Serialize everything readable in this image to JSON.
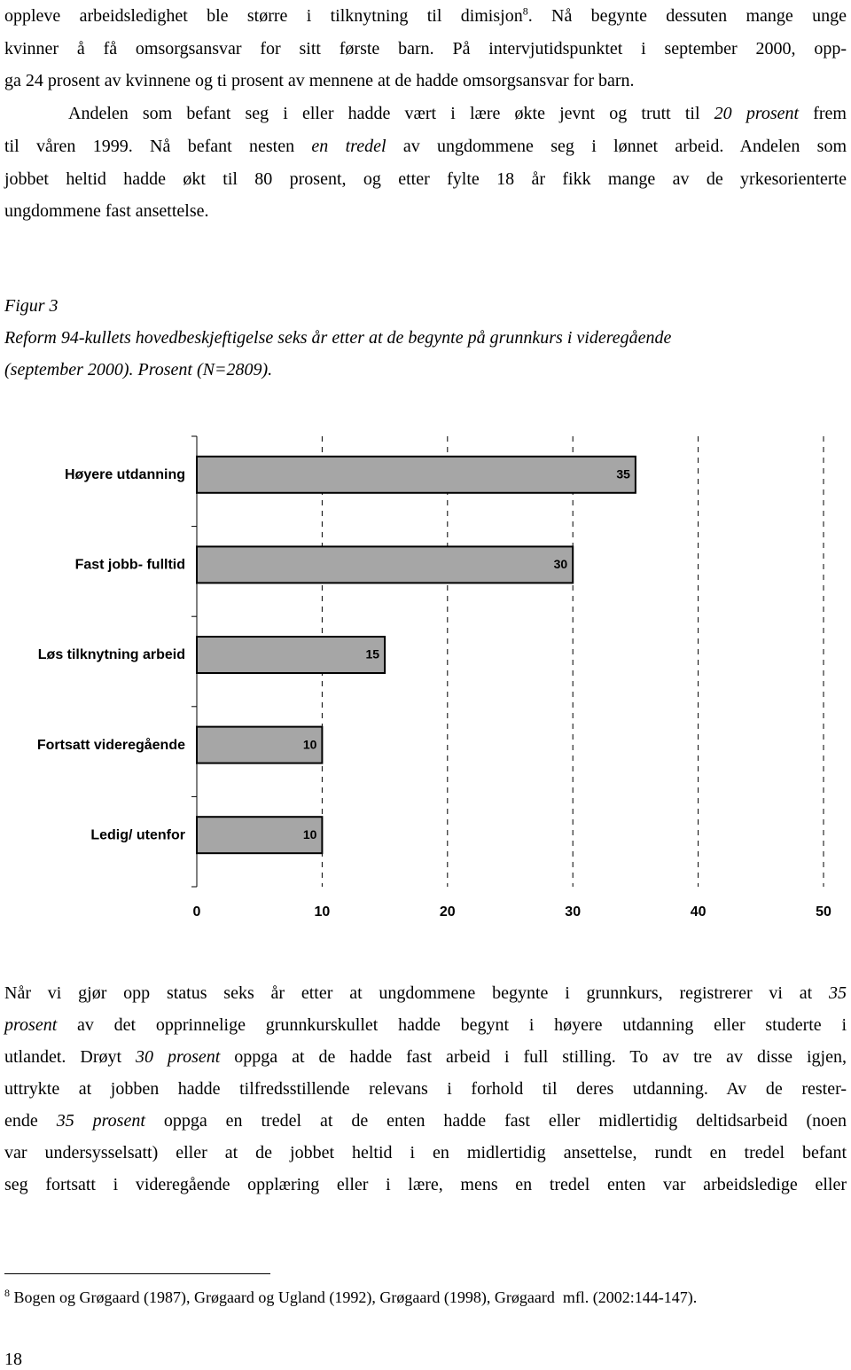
{
  "top_text": {
    "paragraphs": [
      [
        [
          "oppleve arbeidsledighet ble større i tilknytning til dimisjon",
          {
            "sup": "8"
          },
          ". Nå begynte dessuten mange unge"
        ],
        [
          "kvinner å få omsorgsansvar for sitt første barn. På intervjutidspunktet i september 2000, opp-"
        ],
        [
          "ga 24 prosent av kvinnene og ti prosent av mennene at de hadde omsorgsansvar for barn."
        ]
      ],
      [
        [
          "Andelen som befant seg i eller hadde vært i lære økte jevnt og trutt til ",
          {
            "italic": "20 prosent"
          },
          " frem"
        ],
        [
          "til våren 1999. Nå befant nesten ",
          {
            "italic": "en tredel"
          },
          " av ungdommene seg i lønnet arbeid. Andelen som"
        ],
        [
          "jobbet heltid hadde økt til 80 prosent, og etter fylte 18 år fikk mange av de yrkesorienterte"
        ],
        [
          "ungdommene fast ansettelse."
        ]
      ]
    ]
  },
  "figure_caption": {
    "label": "Figur 3",
    "lines": [
      "Reform 94-kullets hovedbeskjeftigelse seks år etter at de begynte på grunnkurs i videregående",
      "(september 2000). Prosent (N=2809)."
    ]
  },
  "chart_data": {
    "type": "bar",
    "orientation": "horizontal",
    "categories": [
      "Høyere utdanning",
      "Fast jobb- fulltid",
      "Løs tilknytning arbeid",
      "Fortsatt videregående",
      "Ledig/ utenfor"
    ],
    "values": [
      35,
      30,
      15,
      10,
      10
    ],
    "color": "#a6a6a6",
    "xlim": [
      0,
      50
    ],
    "xticks": [
      0,
      10,
      20,
      30,
      40,
      50
    ],
    "grid": true
  },
  "bottom_text": {
    "lines": [
      [
        "Når vi gjør opp status seks år etter at ungdommene begynte i grunnkurs, registrerer vi at ",
        {
          "italic": "35"
        }
      ],
      [
        {
          "italic": "prosent"
        },
        " av det opprinnelige grunnkurskullet hadde begynt i høyere utdanning eller studerte i"
      ],
      [
        "utlandet. Drøyt ",
        {
          "italic": "30 prosent"
        },
        " oppga at de hadde fast arbeid i full stilling. To av tre av disse igjen,"
      ],
      [
        "uttrykte at jobben hadde tilfredsstillende relevans i forhold til deres utdanning. Av de rester-"
      ],
      [
        "ende ",
        {
          "italic": "35 prosent"
        },
        " oppga en tredel at de enten hadde fast eller midlertidig deltidsarbeid (noen"
      ],
      [
        "var undersysselsatt) eller at de jobbet heltid i en midlertidig ansettelse, rundt en tredel befant"
      ],
      [
        "seg fortsatt i videregående opplæring eller i lære, mens en tredel enten var arbeidsledige eller"
      ]
    ]
  },
  "footnote": {
    "number": "8",
    "text": "Bogen og Grøgaard (1987), Grøgaard og Ugland (1992), Grøgaard (1998), Grøgaard  mfl. (2002:144-147)."
  },
  "page_number": "18"
}
